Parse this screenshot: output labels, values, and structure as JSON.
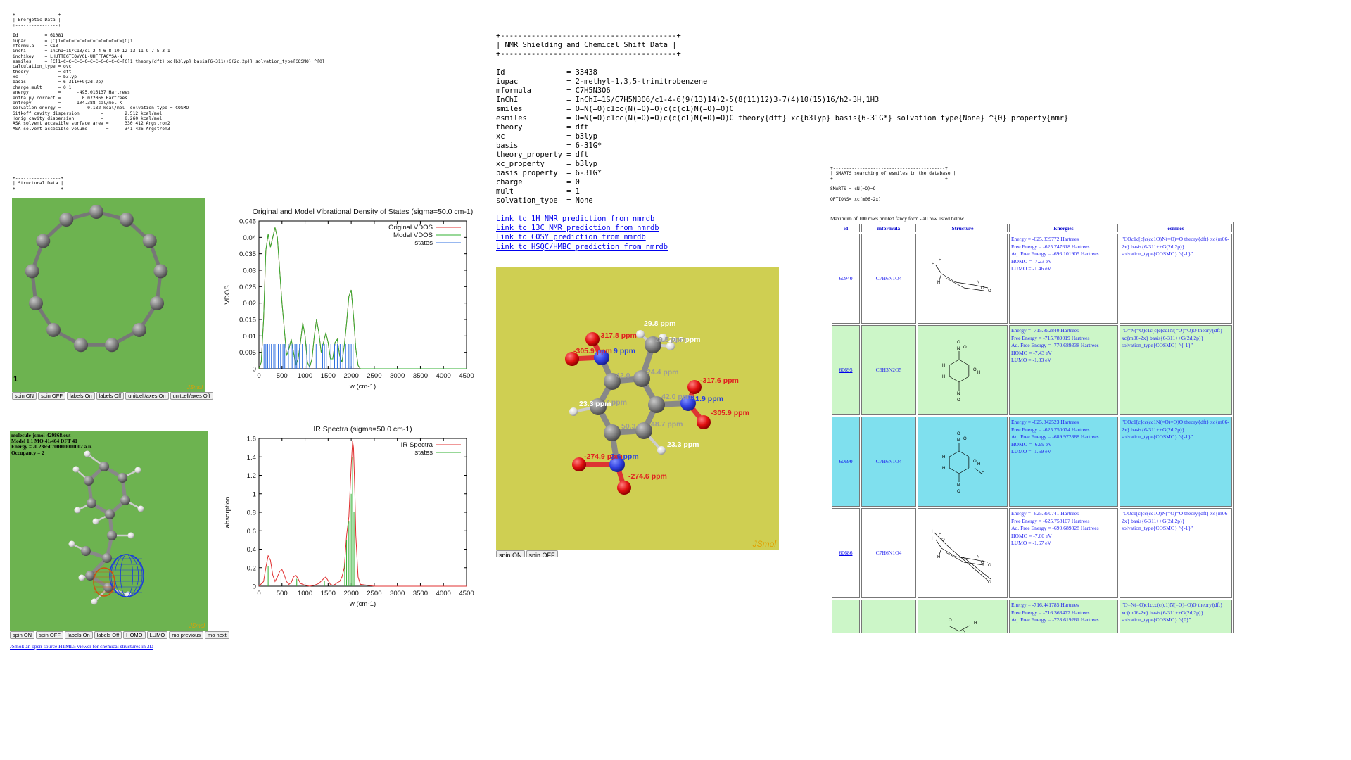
{
  "energetic": {
    "text": "+----------------+\n| Energetic Data |\n+----------------+\n\nId          = 61081\niupac       = [C]1=C=C=C=C=C=C=C=C=C=C=C=[C]1\nmformula    = C13\ninchi       = InChI=1S/C13/c1-2-4-6-8-10-12-13-11-9-7-5-3-1\ninchikey    = LHUTTEGTEQVYGL-UHFFFAOYSA-N\nesmiles     = [C]1=C=C=C=C=C=C=C=C=C=C=C=[C]1 theory{dft} xc{b3lyp} basis{6-311++G(2d,2p)} solvation_type{COSMO} ^{0}\ncalculation_type = ovc\ntheory           = dft\nxc               = b3lyp\nbasis            = 6-311++G(2d,2p)\ncharge,mult      = 0 1\nenergy           =      -495.016137 Hartrees\nenthalpy correct.=        0.072066 Hartrees\nentropy          =      104.388 cal/mol-K\nsolvation energy =          0.182 kcal/mol  solvation_type = COSMO\nSitkoff cavity dispersion        =        2.512 kcal/mol\nHonig cavity dispersion          =        8.260 kcal/mol\nASA solvent accesible surface area =      330.412 Angstrom2\nASA solvent accesible volume       =      341.426 Angstrom3"
  },
  "structural_header": "+-----------------+\n| Structural Data |\n+-----------------+",
  "jsmol1": {
    "frame_label": "1",
    "logo": "JSmol",
    "buttons": [
      "spin ON",
      "spin OFF",
      "labels On",
      "labels Off",
      "unitcell/axes On",
      "unitcell/axes Off"
    ]
  },
  "jsmol2": {
    "info_lines": [
      "molecule-jsmol-429868.out",
      "Model 1.1  MO 41/464 DFT 41",
      "Energy = -0.23650700000000002 a.u.",
      "Occupancy = 2"
    ],
    "logo": "JSmol",
    "buttons": [
      "spin ON",
      "spin OFF",
      "labels On",
      "labels Off",
      "HOMO",
      "LUMO",
      "mo previous",
      "mo next"
    ],
    "footer_link": "JSmol: an open-source HTML5 viewer for chemical structures in 3D"
  },
  "nmr": {
    "text": "+----------------------------------------+\n| NMR Shielding and Chemical Shift Data |\n+----------------------------------------+\n\nId              = 33438\niupac           = 2-methyl-1,3,5-trinitrobenzene\nmformula        = C7H5N3O6\nInChI           = InChI=1S/C7H5N3O6/c1-4-6(9(13)14)2-5(8(11)12)3-7(4)10(15)16/h2-3H,1H3\nsmiles          = O=N(=O)c1cc(N(=O)=O)c(c(c1)N(=O)=O)C\nesmiles         = O=N(=O)c1cc(N(=O)=O)c(c(c1)N(=O)=O)C theory{dft} xc{b3lyp} basis{6-31G*} solvation_type{None} ^{0} property{nmr}\ntheory          = dft\nxc              = b3lyp\nbasis           = 6-31G*\ntheory_property = dft\nxc_property     = b3lyp\nbasis_property  = 6-31G*\ncharge          = 0\nmult            = 1\nsolvation_type  = None",
    "links": [
      "Link to 1H NMR prediction from nmrdb",
      "Link to 13C NMR prediction from nmrdb",
      "Link to COSY prediction from nmrdb",
      "Link to HSQC/HMBC prediction from nmrdb"
    ]
  },
  "jsmol3": {
    "logo": "JSmol",
    "buttons": [
      "spin ON",
      "spin OFF"
    ],
    "labels": {
      "o1": "-317.8 ppm",
      "o2": "-305.9 ppm",
      "n1": "9 ppm",
      "h1": "29.8 ppm",
      "h2": "29.5 ppm",
      "h3": "29.5 ppm",
      "c1": "42.0",
      "c2": "24.4 ppm",
      "c3": "42.0 ppm",
      "o3": "-317.6 ppm",
      "n2": "11.9 ppm",
      "o4": "-305.9 ppm",
      "h4": "23.3 ppm",
      "c4": "7 ppm",
      "c5": "50.3",
      "c6": "48.7 ppm",
      "h5": "23.3 ppm",
      "o5": "-274.9 ppm",
      "n3": "3.6 ppm",
      "o6": "-274.6 ppm"
    }
  },
  "smarts": {
    "text": "+------------------------------------------+\n| SMARTS searching of esmiles in the database |\n+------------------------------------------+\n\nSMARTS = cN(=O)=O\n\nOPTIONS= xc(m06-2x)",
    "caption": "Maximum of 100 rows printed fancy form - all row listed below",
    "headers": [
      "id",
      "mformula",
      "Structure",
      "Energies",
      "esmiles"
    ],
    "rows": [
      {
        "id": "60940",
        "mformula": "C7H6N1O4",
        "energies": [
          "Energy = -625.839772 Hartrees",
          "Free Energy = -625.747618 Hartrees",
          "Aq. Free Energy = -696.101905 Hartrees",
          "HOMO = -7.23 eV",
          "LUMO = -1.46 eV"
        ],
        "esmiles": "\"COc1c[c]c(cc1O)N(=O)=O theory{dft} xc{m06-2x} basis{6-311++G(2d,2p)} solvation_type{COSMO} ^{-1}\""
      },
      {
        "id": "60695",
        "mformula": "C6H3N2O5",
        "energies": [
          "Energy = -715.852840 Hartrees",
          "Free Energy = -715.789019 Hartrees",
          "Aq. Free Energy = -770.689338 Hartrees",
          "HOMO = -7.43 eV",
          "LUMO = -1.83 eV"
        ],
        "esmiles": "\"O=N(=O)c1c[c]c(cc1N(=O)=O)O theory{dft} xc{m06-2x} basis{6-311++G(2d,2p)} solvation_type{COSMO} ^{-1}\""
      },
      {
        "id": "60690",
        "mformula": "C7H6N1O4",
        "energies": [
          "Energy = -625.842523 Hartrees",
          "Free Energy = -625.750074 Hartrees",
          "Aq. Free Energy = -689.972888 Hartrees",
          "HOMO = -6.99 eV",
          "LUMO = -1.59 eV"
        ],
        "esmiles": "\"COc1[c]cc(cc1N(=O)=O)O theory{dft} xc{m06-2x} basis{6-311++G(2d,2p)} solvation_type{COSMO} ^{-1}\""
      },
      {
        "id": "60686",
        "mformula": "C7H6N1O4",
        "energies": [
          "Energy = -625.850741 Hartrees",
          "Free Energy = -625.758107 Hartrees",
          "Aq. Free Energy = -690.689828 Hartrees",
          "HOMO = -7.00 eV",
          "LUMO = -1.67 eV"
        ],
        "esmiles": "\"COc1[c]cc(cc1O)N(=O)=O theory{dft} xc{m06-2x} basis{6-311++G(2d,2p)} solvation_type{COSMO} ^{-1}\""
      },
      {
        "id": "",
        "mformula": "",
        "energies": [
          "Energy = -716.441785 Hartrees",
          "Free Energy = -716.363477 Hartrees",
          "Aq. Free Energy = -728.619261 Hartrees"
        ],
        "esmiles": "\"O=N(=O)c1ccc(c(c1)N(=O)=O)O theory{dft} xc{m06-2x} basis{6-311++G(2d,2p)} solvation_type{COSMO} ^{0}\""
      }
    ]
  },
  "chart_data": [
    {
      "type": "line",
      "title": "Original and Model Vibrational Density of States (sigma=50.0 cm-1)",
      "xlabel": "w (cm-1)",
      "ylabel": "VDOS",
      "xlim": [
        0,
        4500
      ],
      "ylim": [
        0,
        0.045
      ],
      "xticks": [
        "0",
        "500",
        "1000",
        "1500",
        "2000",
        "2500",
        "3000",
        "3500",
        "4000",
        "4500"
      ],
      "yticks": [
        "0",
        "0.005",
        "0.01",
        "0.015",
        "0.02",
        "0.025",
        "0.03",
        "0.035",
        "0.04",
        "0.045"
      ],
      "legend": "top-right",
      "series": [
        {
          "name": "Original VDOS",
          "color": "#e03030",
          "x": [
            0,
            50,
            100,
            150,
            200,
            250,
            300,
            350,
            400,
            450,
            500,
            550,
            600,
            650,
            700,
            750,
            800,
            850,
            900,
            950,
            1000,
            1050,
            1100,
            1150,
            1200,
            1250,
            1300,
            1350,
            1400,
            1450,
            1500,
            1550,
            1600,
            1650,
            1700,
            1750,
            1800,
            1850,
            1900,
            1950,
            2000,
            2050,
            2100,
            2150,
            2200,
            2500,
            3000,
            3500,
            4000,
            4500
          ],
          "y": [
            0,
            0.002,
            0.015,
            0.036,
            0.041,
            0.037,
            0.04,
            0.043,
            0.04,
            0.03,
            0.02,
            0.012,
            0.004,
            0.006,
            0.009,
            0.005,
            0.001,
            0.003,
            0.008,
            0.014,
            0.01,
            0.002,
            0.0005,
            0.003,
            0.01,
            0.015,
            0.011,
            0.005,
            0.008,
            0.011,
            0.008,
            0.003,
            0.003,
            0.008,
            0.009,
            0.004,
            0.002,
            0.007,
            0.014,
            0.022,
            0.024,
            0.016,
            0.006,
            0.001,
            0,
            0,
            0,
            0,
            0,
            0
          ]
        },
        {
          "name": "Model VDOS",
          "color": "#30b030",
          "x": [
            0,
            50,
            100,
            150,
            200,
            250,
            300,
            350,
            400,
            450,
            500,
            550,
            600,
            650,
            700,
            750,
            800,
            850,
            900,
            950,
            1000,
            1050,
            1100,
            1150,
            1200,
            1250,
            1300,
            1350,
            1400,
            1450,
            1500,
            1550,
            1600,
            1650,
            1700,
            1750,
            1800,
            1850,
            1900,
            1950,
            2000,
            2050,
            2100,
            2150,
            2200,
            2500,
            3000,
            3500,
            4000,
            4500
          ],
          "y": [
            0,
            0.002,
            0.015,
            0.036,
            0.041,
            0.037,
            0.04,
            0.043,
            0.04,
            0.03,
            0.02,
            0.012,
            0.004,
            0.006,
            0.009,
            0.005,
            0.001,
            0.003,
            0.008,
            0.014,
            0.01,
            0.002,
            0.0005,
            0.003,
            0.01,
            0.015,
            0.011,
            0.005,
            0.008,
            0.011,
            0.008,
            0.003,
            0.003,
            0.008,
            0.009,
            0.004,
            0.002,
            0.007,
            0.014,
            0.022,
            0.024,
            0.016,
            0.006,
            0.001,
            0,
            0,
            0,
            0,
            0,
            0
          ]
        },
        {
          "name": "states",
          "color": "#3070e0",
          "type": "sticks",
          "height": 0.0075,
          "x": [
            110,
            150,
            190,
            230,
            270,
            320,
            350,
            420,
            470,
            520,
            560,
            640,
            720,
            780,
            820,
            880,
            940,
            1040,
            1100,
            1240,
            1380,
            1420,
            1460,
            1560,
            1640,
            1700,
            1760,
            1820,
            1880,
            1950,
            2000,
            2040
          ]
        }
      ]
    },
    {
      "type": "line",
      "title": "IR Spectra (sigma=50.0 cm-1)",
      "xlabel": "w (cm-1)",
      "ylabel": "absorption",
      "xlim": [
        0,
        4500
      ],
      "ylim": [
        0,
        1.6
      ],
      "xticks": [
        "0",
        "500",
        "1000",
        "1500",
        "2000",
        "2500",
        "3000",
        "3500",
        "4000",
        "4500"
      ],
      "yticks": [
        "0",
        "0.2",
        "0.4",
        "0.6",
        "0.8",
        "1",
        "1.2",
        "1.4",
        "1.6"
      ],
      "legend": "top-right",
      "series": [
        {
          "name": "IR Spectra",
          "color": "#e03030",
          "x": [
            0,
            100,
            150,
            200,
            250,
            300,
            350,
            400,
            450,
            500,
            550,
            600,
            650,
            700,
            750,
            800,
            850,
            900,
            950,
            1000,
            1100,
            1200,
            1300,
            1400,
            1450,
            1500,
            1550,
            1600,
            1650,
            1700,
            1750,
            1800,
            1850,
            1900,
            1950,
            2000,
            2030,
            2050,
            2080,
            2100,
            2150,
            2200,
            2500,
            3000,
            4500
          ],
          "y": [
            0,
            0.05,
            0.2,
            0.33,
            0.28,
            0.12,
            0.05,
            0.1,
            0.16,
            0.18,
            0.12,
            0.05,
            0.02,
            0.04,
            0.1,
            0.12,
            0.08,
            0.03,
            0.02,
            0.01,
            0,
            0.01,
            0.03,
            0.08,
            0.1,
            0.06,
            0.02,
            0.01,
            0.02,
            0.04,
            0.05,
            0.1,
            0.2,
            0.55,
            0.75,
            1.3,
            1.57,
            1.5,
            1.0,
            0.55,
            0.1,
            0.02,
            0,
            0,
            0
          ]
        },
        {
          "name": "states",
          "color": "#30b030",
          "type": "sticks",
          "x": [
            200,
            480,
            820,
            1420,
            1860,
            1900,
            1950,
            2000,
            2030,
            2060
          ],
          "heights": [
            0.22,
            0.12,
            0.08,
            0.06,
            0.25,
            0.5,
            0.7,
            1.0,
            1.4,
            0.8
          ]
        }
      ]
    }
  ]
}
